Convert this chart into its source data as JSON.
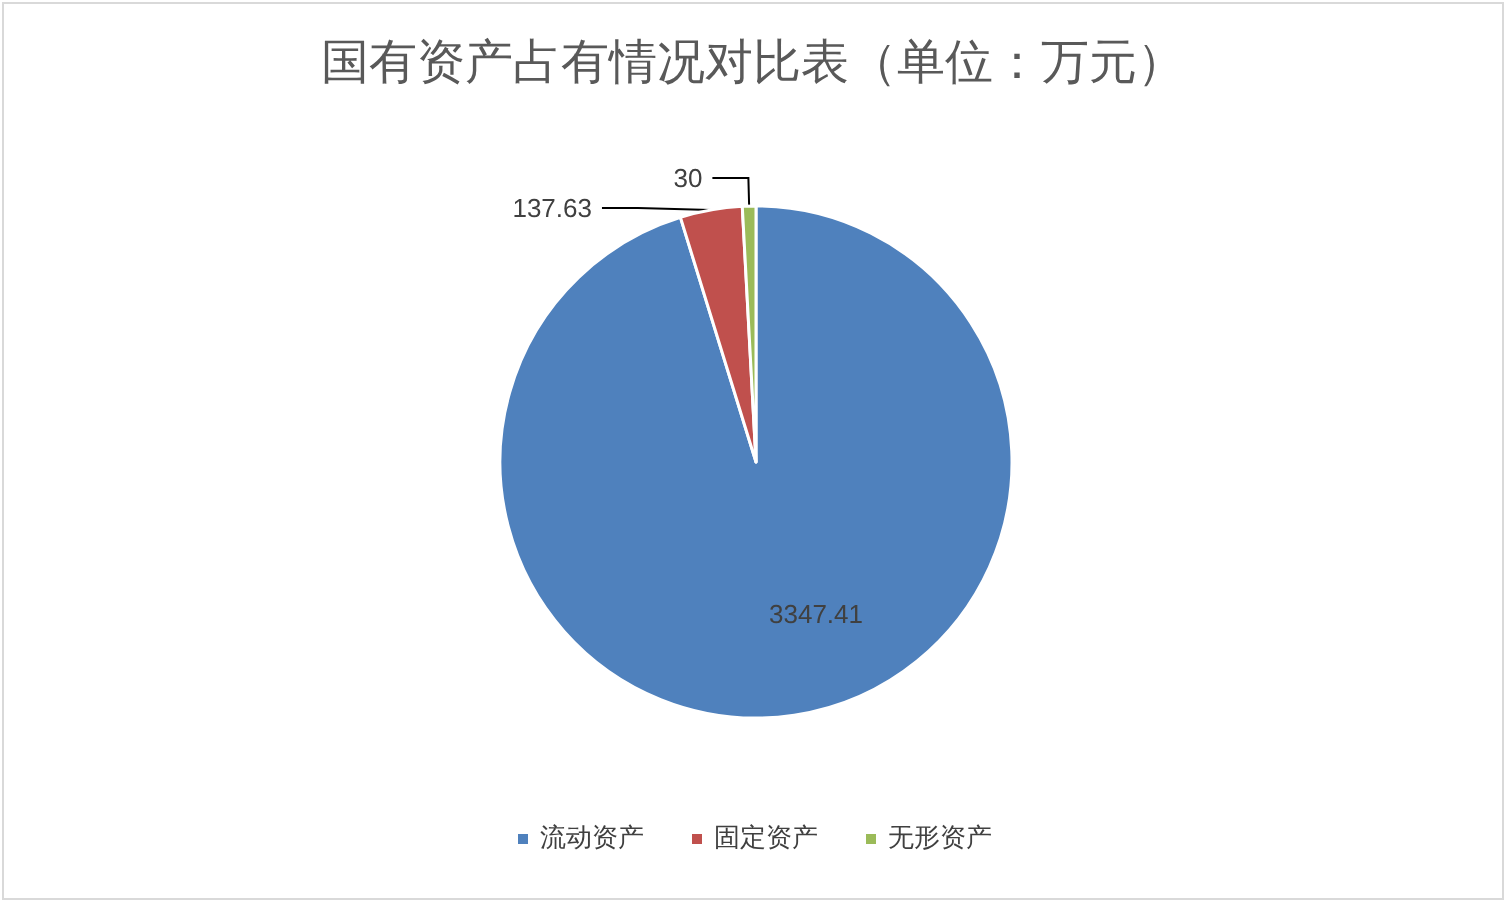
{
  "chart_data": {
    "type": "pie",
    "title": "国有资产占有情况对比表（单位：万元）",
    "categories": [
      "流动资产",
      "固定资产",
      "无形资产"
    ],
    "values": [
      3347.41,
      137.63,
      30
    ],
    "colors": [
      "#4f81bd",
      "#c0504d",
      "#9bbb59"
    ],
    "data_labels": true,
    "legend": "bottom"
  }
}
